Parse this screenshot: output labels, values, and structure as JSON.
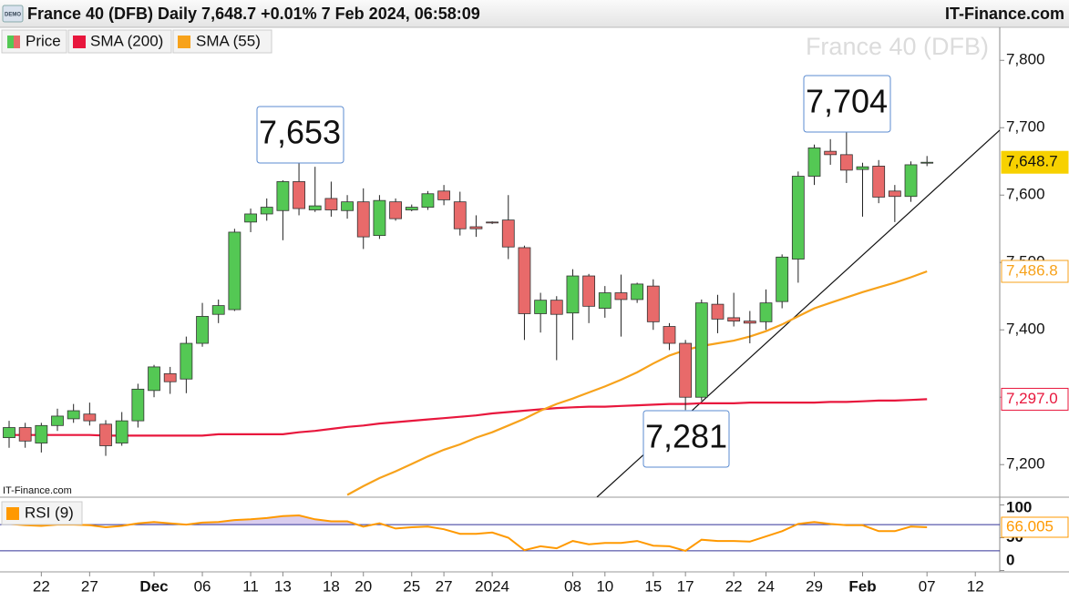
{
  "chart_data": {
    "type": "candlestick",
    "title": "France 40 (DFB) Daily 7,648.7 +0.01% 7 Feb 2024, 06:58:09",
    "badge": "DEMO",
    "brand": "IT-Finance.com",
    "source_note": "IT-Finance.com",
    "watermark": "France 40 (DFB)",
    "annotations": [
      "7,653",
      "7,704",
      "7,281"
    ],
    "categories": [
      null,
      null,
      "22",
      null,
      null,
      "27",
      null,
      null,
      null,
      "Dec",
      null,
      null,
      "06",
      null,
      null,
      "11",
      null,
      "13",
      null,
      null,
      "18",
      null,
      "20",
      null,
      null,
      "25",
      null,
      "27",
      null,
      null,
      "2024",
      null,
      null,
      null,
      null,
      "08",
      null,
      "10",
      null,
      null,
      "15",
      null,
      "17",
      null,
      null,
      "22",
      null,
      "24",
      null,
      null,
      "29",
      null,
      null,
      "Feb",
      null,
      null,
      null,
      "07",
      null,
      null,
      "12"
    ],
    "series": [
      {
        "name": "Price",
        "up_color": "#54c854",
        "down_color": "#e86a6a",
        "label_color": "#f7d100",
        "last_label": "7,648.7",
        "open": [
          7240,
          7255,
          7232,
          7258,
          7268,
          7275,
          7260,
          7232,
          7265,
          7310,
          7335,
          7327,
          7380,
          7423,
          7430,
          7560,
          7572,
          7577,
          7620,
          7578,
          7595,
          7577,
          7590,
          7540,
          7590,
          7578,
          7582,
          7606,
          7590,
          7553,
          7560,
          7563,
          7522,
          7424,
          7444,
          7425,
          7480,
          7432,
          7455,
          7445,
          7465,
          7405,
          7380,
          7300,
          7438,
          7418,
          7413,
          7412,
          7442,
          7505,
          7628,
          7665,
          7660,
          7638,
          7643,
          7606,
          7598,
          7648,
          null,
          null,
          null
        ],
        "high": [
          7265,
          7262,
          7262,
          7283,
          7290,
          7292,
          7266,
          7278,
          7320,
          7348,
          7345,
          7390,
          7440,
          7445,
          7550,
          7580,
          7595,
          7622,
          7653,
          7642,
          7620,
          7600,
          7610,
          7600,
          7595,
          7586,
          7606,
          7615,
          7605,
          7570,
          7561,
          7600,
          7525,
          7455,
          7450,
          7490,
          7483,
          7465,
          7482,
          7470,
          7475,
          7410,
          7385,
          7445,
          7452,
          7455,
          7428,
          7460,
          7512,
          7635,
          7675,
          7683,
          7704,
          7648,
          7652,
          7615,
          7650,
          7658,
          null,
          null,
          null
        ],
        "low": [
          7225,
          7225,
          7218,
          7250,
          7262,
          7258,
          7213,
          7228,
          7255,
          7300,
          7305,
          7306,
          7375,
          7410,
          7428,
          7545,
          7562,
          7533,
          7570,
          7575,
          7568,
          7565,
          7520,
          7535,
          7562,
          7576,
          7578,
          7585,
          7540,
          7538,
          7557,
          7505,
          7385,
          7396,
          7355,
          7385,
          7410,
          7418,
          7390,
          7440,
          7400,
          7370,
          7281,
          7295,
          7395,
          7405,
          7380,
          7400,
          7432,
          7470,
          7615,
          7645,
          7618,
          7568,
          7588,
          7560,
          7590,
          7643,
          null,
          null,
          null
        ],
        "close": [
          7255,
          7235,
          7258,
          7272,
          7280,
          7265,
          7228,
          7265,
          7312,
          7345,
          7323,
          7380,
          7420,
          7436,
          7545,
          7572,
          7582,
          7620,
          7580,
          7584,
          7578,
          7590,
          7538,
          7592,
          7565,
          7582,
          7602,
          7593,
          7550,
          7550,
          7559,
          7523,
          7424,
          7444,
          7423,
          7480,
          7435,
          7455,
          7445,
          7468,
          7412,
          7380,
          7300,
          7440,
          7416,
          7413,
          7410,
          7440,
          7508,
          7628,
          7670,
          7660,
          7637,
          7642,
          7597,
          7598,
          7645,
          7648.7,
          null,
          null,
          null
        ]
      },
      {
        "name": "SMA (200)",
        "color": "#e8173d",
        "last_label": "7,297.0",
        "values": [
          7244,
          7244,
          7244,
          7244,
          7244,
          7244,
          7243,
          7243,
          7243,
          7243,
          7243,
          7243,
          7243,
          7245,
          7245,
          7245,
          7245,
          7245,
          7248,
          7250,
          7253,
          7256,
          7258,
          7261,
          7263,
          7265,
          7267,
          7269,
          7271,
          7273,
          7276,
          7278,
          7280,
          7282,
          7284,
          7285,
          7286,
          7286,
          7287,
          7288,
          7289,
          7290,
          7290,
          7291,
          7291,
          7291,
          7292,
          7292,
          7292,
          7292,
          7292,
          7293,
          7293,
          7294,
          7295,
          7295,
          7296,
          7297.0,
          null,
          null,
          null
        ]
      },
      {
        "name": "SMA (55)",
        "color": "#f7a21b",
        "last_label": "7,486.8",
        "values": [
          null,
          null,
          null,
          null,
          null,
          null,
          null,
          null,
          null,
          null,
          null,
          null,
          null,
          null,
          null,
          null,
          null,
          null,
          null,
          null,
          null,
          7155,
          7168,
          7180,
          7190,
          7201,
          7212,
          7222,
          7230,
          7240,
          7248,
          7258,
          7268,
          7280,
          7290,
          7298,
          7307,
          7316,
          7326,
          7337,
          7350,
          7362,
          7370,
          7376,
          7380,
          7384,
          7390,
          7398,
          7408,
          7420,
          7432,
          7440,
          7448,
          7456,
          7463,
          7470,
          7478,
          7486.8,
          null,
          null,
          null
        ]
      }
    ],
    "ylim": [
      7153,
      7849
    ],
    "yticks": [
      {
        "value": 7200,
        "label": "7,200"
      },
      {
        "value": 7300,
        "label": "7,300"
      },
      {
        "value": 7400,
        "label": "7,400"
      },
      {
        "value": 7500,
        "label": "7,500"
      },
      {
        "value": 7600,
        "label": "7,600"
      },
      {
        "value": 7700,
        "label": "7,700"
      },
      {
        "value": 7800,
        "label": "7,800"
      }
    ],
    "grid": false,
    "rsi": {
      "name": "RSI (9)",
      "color": "#ff9900",
      "fill": "#d9cdee",
      "level_color": "#333399",
      "last_label": "66.005",
      "values": [
        71,
        69,
        68,
        70,
        70,
        69,
        66,
        68,
        72,
        74,
        72,
        70,
        73,
        74,
        77,
        78,
        80,
        83,
        84,
        78,
        75,
        75,
        67,
        72,
        64,
        66,
        67,
        63,
        56,
        56,
        58,
        50,
        31,
        37,
        34,
        45,
        40,
        42,
        42,
        45,
        38,
        37,
        30,
        47,
        45,
        45,
        44,
        52,
        60,
        71,
        74,
        71,
        69,
        69,
        60,
        60,
        67,
        66.005,
        null,
        null,
        null
      ],
      "ylim": [
        -2,
        109
      ],
      "yticks": [
        0,
        50,
        100
      ],
      "levels": [
        30,
        70
      ]
    }
  }
}
